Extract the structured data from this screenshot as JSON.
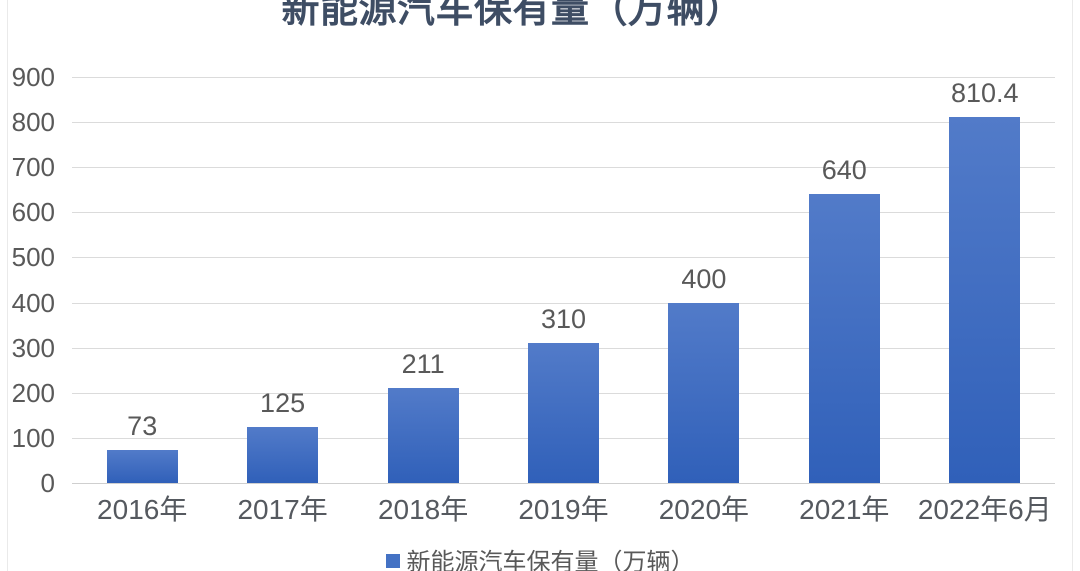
{
  "chart_data": {
    "type": "bar",
    "title": "新能源汽车保有量（万辆）",
    "categories": [
      "2016年",
      "2017年",
      "2018年",
      "2019年",
      "2020年",
      "2021年",
      "2022年6月"
    ],
    "values": [
      73,
      125,
      211,
      310,
      400,
      640,
      810.4
    ],
    "labels": [
      "73",
      "125",
      "211",
      "310",
      "400",
      "640",
      "810.4"
    ],
    "xlabel": "",
    "ylabel": "",
    "ylim": [
      0,
      900
    ],
    "y_ticks": [
      0,
      100,
      200,
      300,
      400,
      500,
      600,
      700,
      800,
      900
    ],
    "grid": true,
    "legend": {
      "label": "新能源汽车保有量（万辆）",
      "position": "bottom"
    },
    "colors": {
      "bar_top": "#527bc9",
      "bar_bottom": "#3060b9",
      "legend_swatch": "#4472c4",
      "title_text": "#3e4d64",
      "axis_text": "#595959",
      "gridline": "#dbdbdb",
      "frame_edge": "#eaeaea",
      "background": "#ffffff"
    }
  }
}
